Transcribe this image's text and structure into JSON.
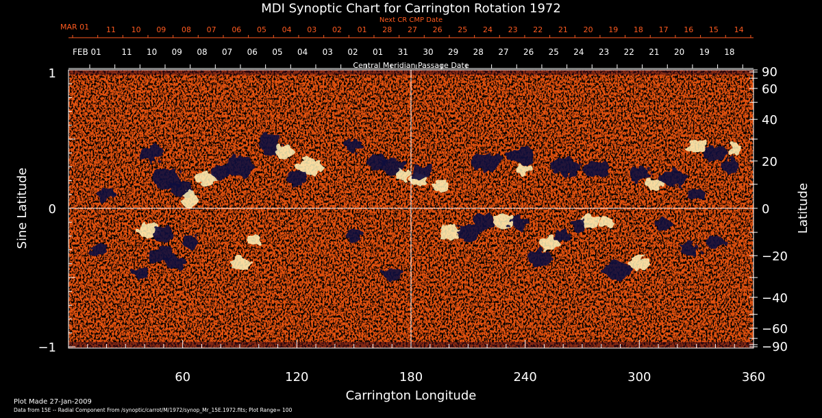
{
  "chart_data": {
    "type": "heatmap",
    "title": "MDI Synoptic Chart for Carrington Rotation 1972",
    "xlabel": "Carrington Longitude",
    "ylabel": "Sine Latitude",
    "y2label": "Latitude",
    "xlim": [
      0,
      360
    ],
    "ylim": [
      -1,
      1
    ],
    "x_ticks": [
      "60",
      "120",
      "180",
      "240",
      "300",
      "360"
    ],
    "y_ticks": [
      "1",
      "0",
      "−1"
    ],
    "lat_ticks": [
      "90",
      "60",
      "40",
      "20",
      "0",
      "−20",
      "−40",
      "−60",
      "−90"
    ],
    "lat_tick_values": [
      90,
      60,
      40,
      20,
      0,
      -20,
      -40,
      -60,
      -90
    ],
    "cmp_axis_label": "Central Meridian Passage Date",
    "cmp_start_label": "FEB 01",
    "cmp_dates": [
      "11",
      "10",
      "09",
      "08",
      "07",
      "06",
      "05",
      "04",
      "03",
      "02",
      "01",
      "31",
      "30",
      "29",
      "28",
      "27",
      "26",
      "25",
      "24",
      "23",
      "22",
      "21",
      "20",
      "19",
      "18"
    ],
    "next_cr_axis_label": "Next CR CMP Date",
    "next_cr_start_label": "MAR 01",
    "next_cr_dates": [
      "11",
      "10",
      "09",
      "08",
      "07",
      "06",
      "05",
      "04",
      "03",
      "02",
      "01",
      "28",
      "27",
      "26",
      "25",
      "24",
      "23",
      "22",
      "21",
      "20",
      "19",
      "18",
      "17",
      "16",
      "15",
      "14"
    ],
    "colorscale": {
      "colors": [
        "#0b0a3e",
        "#5a0f24",
        "#c42a07",
        "#f05a10",
        "#ffa43a",
        "#fff3b8"
      ],
      "background": "#e8500f"
    },
    "footer_plot_made": "Plot Made 27-Jan-2009",
    "footer_source": "Data from 15E -- Radial Component From /synoptic/carrot/M/1972/synop_Mr_15E.1972.fits; Plot Range= 100"
  },
  "colors": {
    "background": "#000000",
    "axes": "#ffffff",
    "next_cr_text": "#ff5a1f",
    "grid": "#ffffff"
  }
}
